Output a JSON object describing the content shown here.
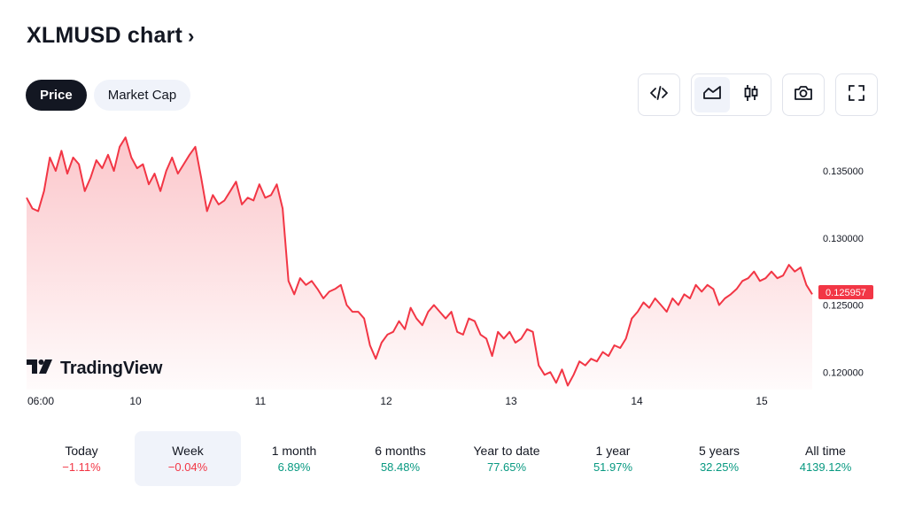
{
  "header": {
    "title": "XLMUSD chart",
    "chevron": "›"
  },
  "tabs": [
    {
      "label": "Price",
      "active": true
    },
    {
      "label": "Market Cap",
      "active": false
    }
  ],
  "toolbar": {
    "embed_icon": "code-icon",
    "area_icon": "area-chart-icon",
    "candle_icon": "candlestick-icon",
    "snapshot_icon": "camera-icon",
    "fullscreen_icon": "fullscreen-icon"
  },
  "branding": {
    "logo_text": "TradingView"
  },
  "colors": {
    "line": "#f23645",
    "fill": "#f23645",
    "positive": "#089981",
    "negative": "#f23645",
    "price_tag_bg": "#f23645"
  },
  "chart_data": {
    "type": "area",
    "title": "",
    "xlabel": "",
    "ylabel": "",
    "x_tick_labels": [
      "06:00",
      "10",
      "11",
      "12",
      "13",
      "14",
      "15"
    ],
    "y_tick_labels": [
      "0.135000",
      "0.130000",
      "0.125000",
      "0.120000"
    ],
    "y_ticks": [
      0.135,
      0.13,
      0.125,
      0.12
    ],
    "ylim": [
      0.1187,
      0.1385
    ],
    "last_price_label": "0.125957",
    "last_price": 0.125957,
    "grid": false,
    "series": [
      {
        "values": [
          0.133,
          0.1322,
          0.132,
          0.1335,
          0.136,
          0.135,
          0.1365,
          0.1348,
          0.136,
          0.1355,
          0.1335,
          0.1345,
          0.1358,
          0.1352,
          0.1362,
          0.135,
          0.1368,
          0.1375,
          0.136,
          0.1352,
          0.1355,
          0.134,
          0.1348,
          0.1335,
          0.135,
          0.136,
          0.1348,
          0.1355,
          0.1362,
          0.1368,
          0.1345,
          0.132,
          0.1332,
          0.1325,
          0.1328,
          0.1335,
          0.1342,
          0.1325,
          0.133,
          0.1328,
          0.134,
          0.133,
          0.1332,
          0.134,
          0.1322,
          0.1268,
          0.1258,
          0.127,
          0.1265,
          0.1268,
          0.1262,
          0.1255,
          0.126,
          0.1262,
          0.1265,
          0.125,
          0.1245,
          0.1245,
          0.124,
          0.122,
          0.121,
          0.1222,
          0.1228,
          0.123,
          0.1238,
          0.1232,
          0.1248,
          0.124,
          0.1235,
          0.1245,
          0.125,
          0.1245,
          0.124,
          0.1245,
          0.123,
          0.1228,
          0.124,
          0.1238,
          0.1228,
          0.1225,
          0.1212,
          0.123,
          0.1225,
          0.123,
          0.1222,
          0.1225,
          0.1232,
          0.123,
          0.1205,
          0.1198,
          0.12,
          0.1192,
          0.1202,
          0.119,
          0.1198,
          0.1208,
          0.1205,
          0.121,
          0.1208,
          0.1215,
          0.1212,
          0.122,
          0.1218,
          0.1225,
          0.124,
          0.1245,
          0.1252,
          0.1248,
          0.1255,
          0.125,
          0.1245,
          0.1255,
          0.125,
          0.1258,
          0.1255,
          0.1265,
          0.126,
          0.1265,
          0.1262,
          0.125,
          0.1255,
          0.1258,
          0.1262,
          0.1268,
          0.127,
          0.1275,
          0.1268,
          0.127,
          0.1275,
          0.127,
          0.1272,
          0.128,
          0.1275,
          0.1278,
          0.1265,
          0.1258
        ]
      }
    ]
  },
  "periods": [
    {
      "label": "Today",
      "value": "−1.11%",
      "trend": "neg",
      "selected": false
    },
    {
      "label": "Week",
      "value": "−0.04%",
      "trend": "neg",
      "selected": true
    },
    {
      "label": "1 month",
      "value": "6.89%",
      "trend": "pos",
      "selected": false
    },
    {
      "label": "6 months",
      "value": "58.48%",
      "trend": "pos",
      "selected": false
    },
    {
      "label": "Year to date",
      "value": "77.65%",
      "trend": "pos",
      "selected": false
    },
    {
      "label": "1 year",
      "value": "51.97%",
      "trend": "pos",
      "selected": false
    },
    {
      "label": "5 years",
      "value": "32.25%",
      "trend": "pos",
      "selected": false
    },
    {
      "label": "All time",
      "value": "4139.12%",
      "trend": "pos",
      "selected": false
    }
  ]
}
